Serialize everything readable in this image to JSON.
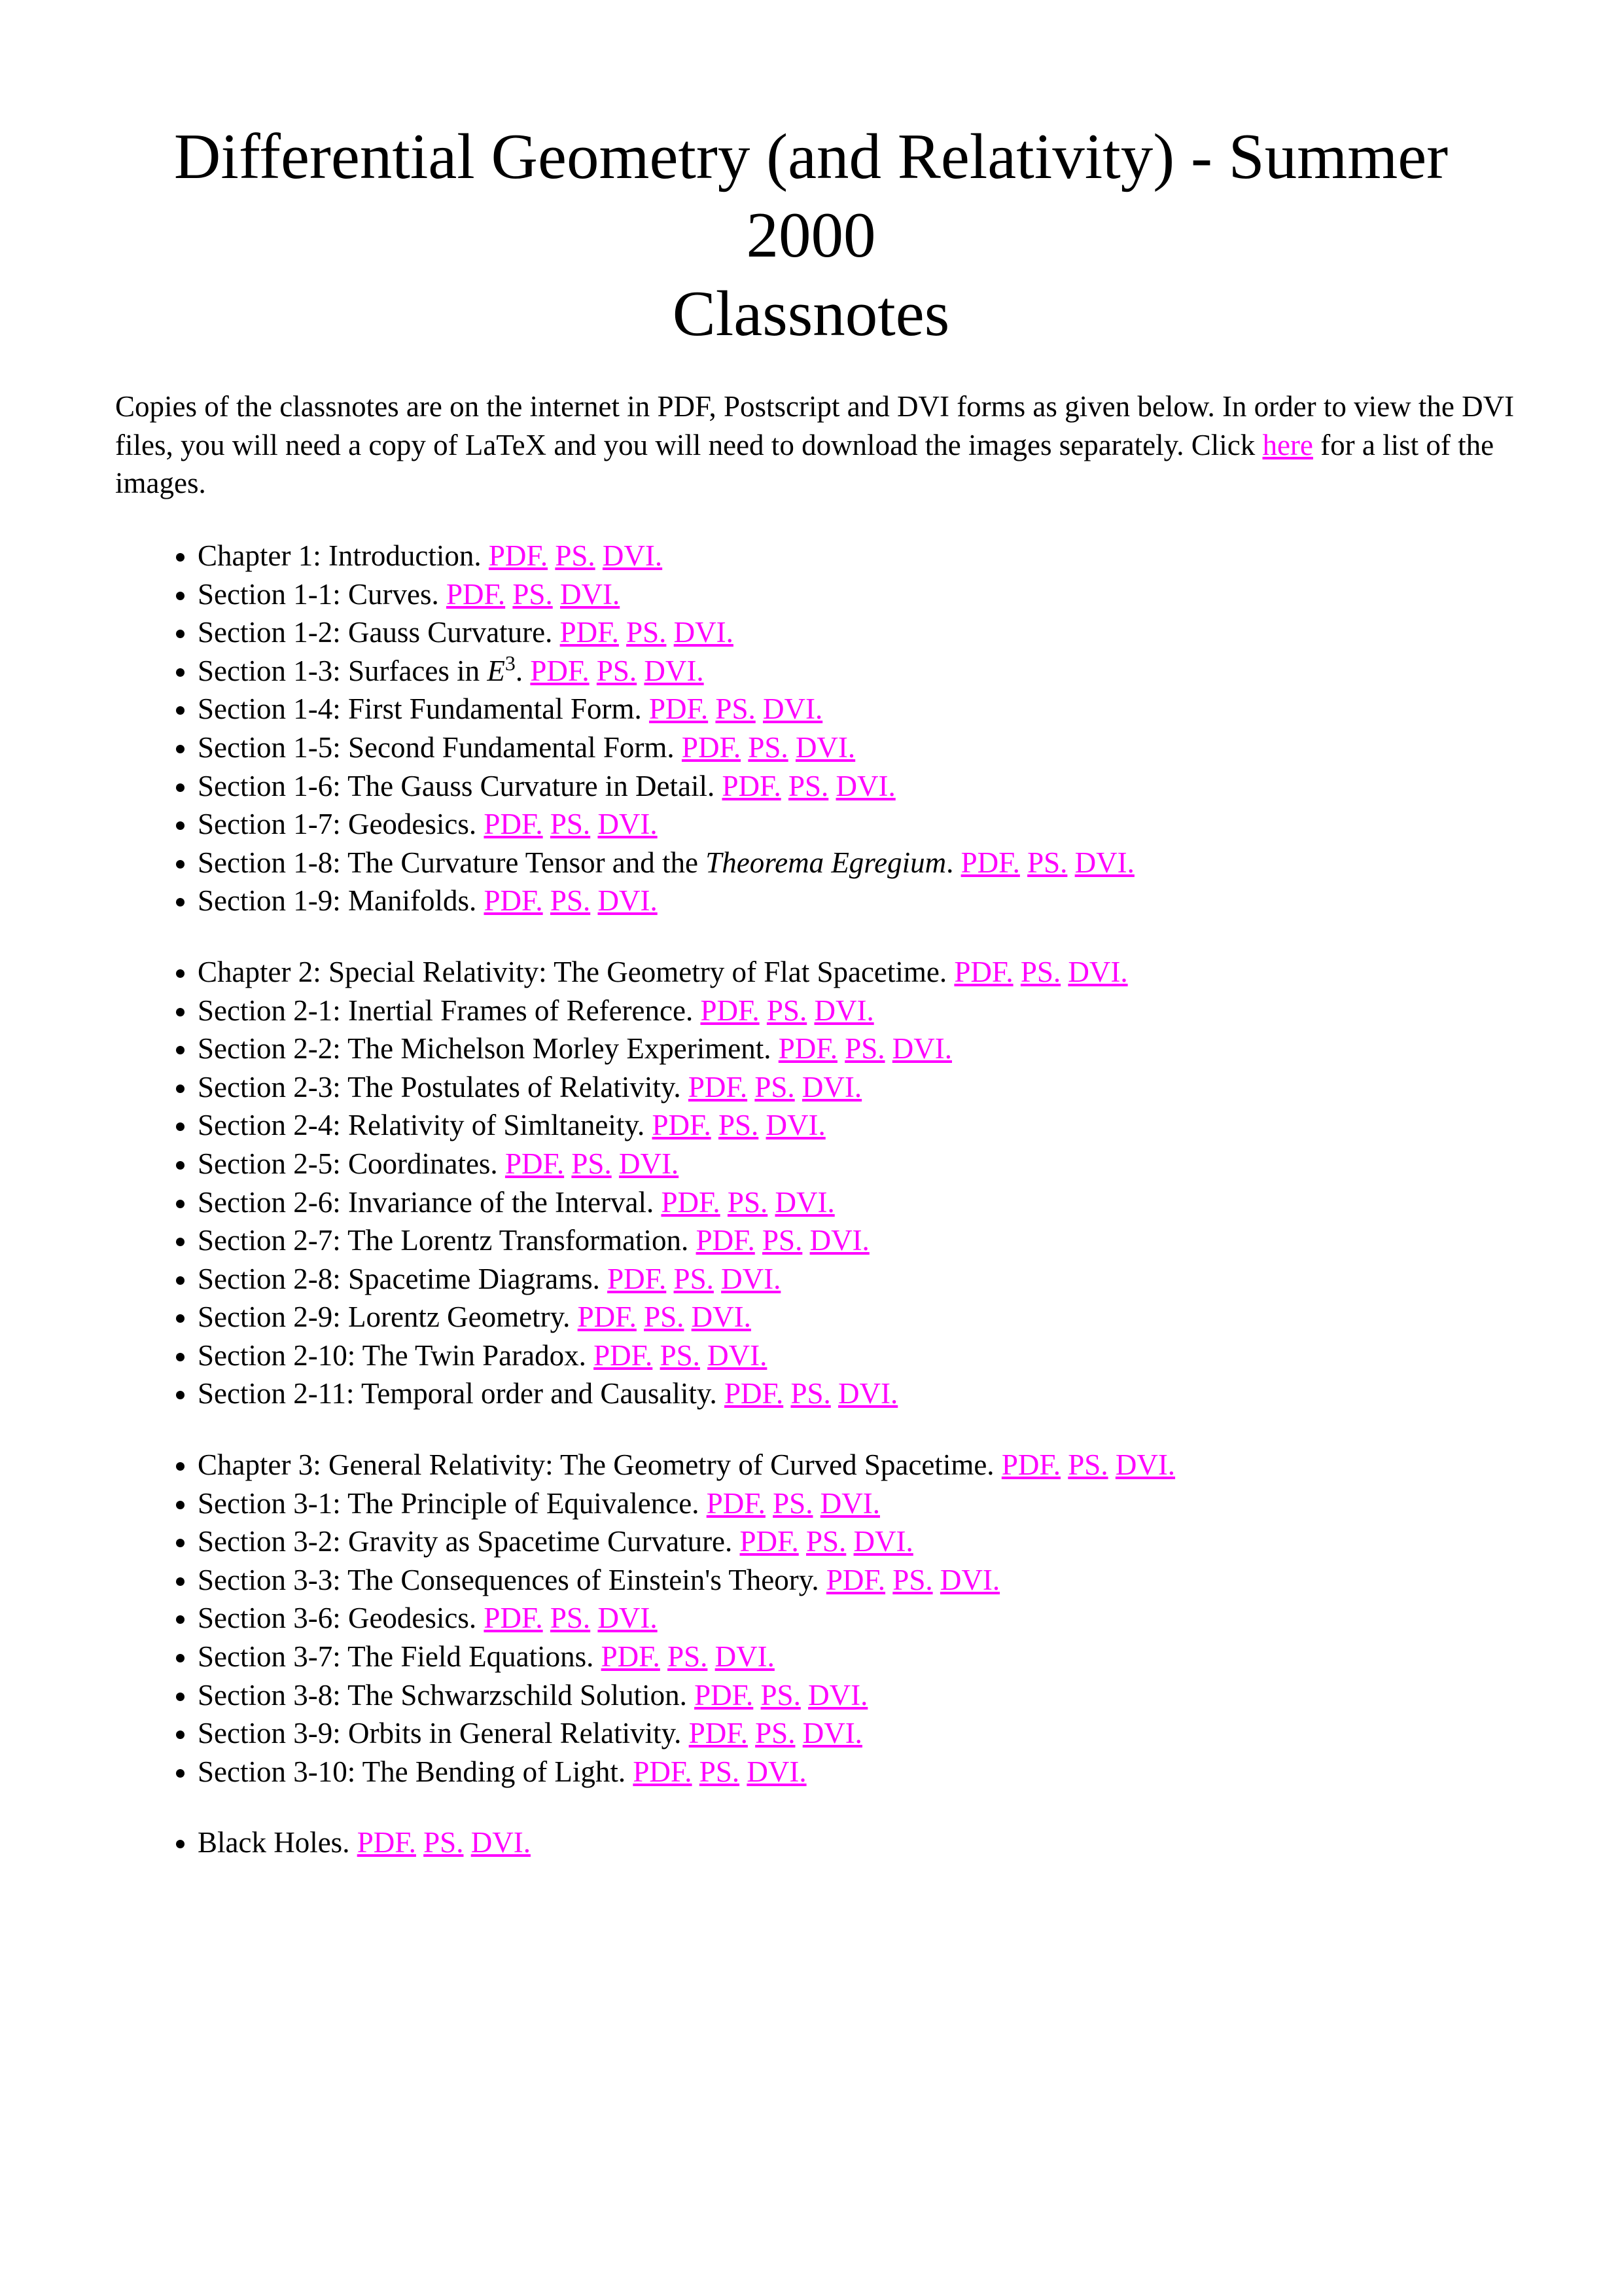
{
  "header": {
    "title": [
      "Differential Geometry (and Relativity) - Summer 2000",
      "Classnotes"
    ]
  },
  "intro": {
    "before": "Copies of the classnotes are on the internet in PDF, Postscript and DVI forms as given below. In order to view the DVI files, you will need a copy of LaTeX and you will need to download the images separately. Click ",
    "link": "here",
    "after": " for a list of the images."
  },
  "groups": [
    [
      {
        "label": "Chapter 1: Introduction.",
        "links": [
          "PDF.",
          "PS.",
          "DVI."
        ]
      },
      {
        "label": "Section 1-1: Curves.",
        "links": [
          "PDF.",
          "PS.",
          "DVI."
        ]
      },
      {
        "label": "Section 1-2: Gauss Curvature.",
        "links": [
          "PDF.",
          "PS.",
          "DVI."
        ]
      },
      {
        "label": [
          {
            "text": "Section 1-3: Surfaces in "
          },
          {
            "text": "E",
            "style": "italic"
          },
          {
            "text": "3",
            "style": "sup"
          },
          {
            "text": "."
          }
        ],
        "links": [
          "PDF.",
          "PS.",
          "DVI."
        ]
      },
      {
        "label": "Section 1-4: First Fundamental Form.",
        "links": [
          "PDF.",
          "PS.",
          "DVI."
        ]
      },
      {
        "label": "Section 1-5: Second Fundamental Form.",
        "links": [
          "PDF.",
          "PS.",
          "DVI."
        ]
      },
      {
        "label": "Section 1-6: The Gauss Curvature in Detail.",
        "links": [
          "PDF.",
          "PS.",
          "DVI."
        ]
      },
      {
        "label": "Section 1-7: Geodesics.",
        "links": [
          "PDF.",
          "PS.",
          "DVI."
        ]
      },
      {
        "label": [
          {
            "text": "Section 1-8: The Curvature Tensor and the "
          },
          {
            "text": "Theorema Egregium",
            "style": "italic"
          },
          {
            "text": "."
          }
        ],
        "links": [
          "PDF.",
          "PS.",
          "DVI."
        ]
      },
      {
        "label": "Section 1-9: Manifolds.",
        "links": [
          "PDF.",
          "PS.",
          "DVI."
        ]
      }
    ],
    [
      {
        "label": "Chapter 2: Special Relativity: The Geometry of Flat Spacetime.",
        "links": [
          "PDF.",
          "PS.",
          "DVI."
        ]
      },
      {
        "label": "Section 2-1: Inertial Frames of Reference.",
        "links": [
          "PDF.",
          "PS.",
          "DVI."
        ]
      },
      {
        "label": "Section 2-2: The Michelson Morley Experiment.",
        "links": [
          "PDF.",
          "PS.",
          "DVI."
        ]
      },
      {
        "label": "Section 2-3: The Postulates of Relativity.",
        "links": [
          "PDF.",
          "PS.",
          "DVI."
        ]
      },
      {
        "label": "Section 2-4: Relativity of Simltaneity.",
        "links": [
          "PDF.",
          "PS.",
          "DVI."
        ]
      },
      {
        "label": "Section 2-5: Coordinates.",
        "links": [
          "PDF.",
          "PS.",
          "DVI."
        ]
      },
      {
        "label": "Section 2-6: Invariance of the Interval.",
        "links": [
          "PDF.",
          "PS.",
          "DVI."
        ]
      },
      {
        "label": "Section 2-7: The Lorentz Transformation.",
        "links": [
          "PDF.",
          "PS.",
          "DVI."
        ]
      },
      {
        "label": "Section 2-8: Spacetime Diagrams.",
        "links": [
          "PDF.",
          "PS.",
          "DVI."
        ]
      },
      {
        "label": "Section 2-9: Lorentz Geometry.",
        "links": [
          "PDF.",
          "PS.",
          "DVI."
        ]
      },
      {
        "label": "Section 2-10: The Twin Paradox.",
        "links": [
          "PDF.",
          "PS.",
          "DVI."
        ]
      },
      {
        "label": "Section 2-11: Temporal order and Causality.",
        "links": [
          "PDF.",
          "PS.",
          "DVI."
        ]
      }
    ],
    [
      {
        "label": "Chapter 3: General Relativity: The Geometry of Curved Spacetime.",
        "links": [
          "PDF.",
          "PS.",
          "DVI."
        ]
      },
      {
        "label": "Section 3-1: The Principle of Equivalence.",
        "links": [
          "PDF.",
          "PS.",
          "DVI."
        ]
      },
      {
        "label": "Section 3-2: Gravity as Spacetime Curvature.",
        "links": [
          "PDF.",
          "PS.",
          "DVI."
        ]
      },
      {
        "label": "Section 3-3: The Consequences of Einstein's Theory.",
        "links": [
          "PDF.",
          "PS.",
          "DVI."
        ]
      },
      {
        "label": "Section 3-6: Geodesics.",
        "links": [
          "PDF.",
          "PS.",
          "DVI."
        ]
      },
      {
        "label": "Section 3-7: The Field Equations.",
        "links": [
          "PDF.",
          "PS.",
          "DVI."
        ]
      },
      {
        "label": "Section 3-8: The Schwarzschild Solution.",
        "links": [
          "PDF.",
          "PS.",
          "DVI."
        ]
      },
      {
        "label": "Section 3-9: Orbits in General Relativity.",
        "links": [
          "PDF.",
          "PS.",
          "DVI."
        ]
      },
      {
        "label": "Section 3-10: The Bending of Light.",
        "links": [
          "PDF.",
          "PS.",
          "DVI."
        ]
      }
    ],
    [
      {
        "label": "Black Holes.",
        "links": [
          "PDF.",
          "PS.",
          "DVI."
        ]
      }
    ]
  ]
}
